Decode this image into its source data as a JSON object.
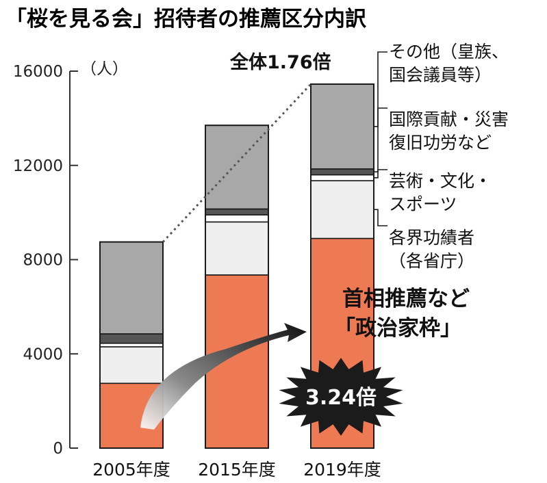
{
  "title": "「桜を見る会」招待者の推薦区分内訳",
  "colors": {
    "pm": "#ee7a54",
    "ministry": "#eeeeee",
    "arts": "#ffffff",
    "intl": "#555555",
    "other": "#a8a8a8",
    "text": "#1a1a1a"
  },
  "annotations": {
    "total_ratio": "全体1.76倍",
    "pm_label_line1": "首相推薦など",
    "pm_label_line2": "「政治家枠」",
    "pm_ratio": "3.24倍"
  },
  "chart_data": {
    "type": "bar",
    "stacked": true,
    "categories": [
      "2005年度",
      "2015年度",
      "2019年度"
    ],
    "ylabel": "（人）",
    "ylim": [
      0,
      16000
    ],
    "yticks": [
      0,
      4000,
      8000,
      12000,
      16000
    ],
    "grid": false,
    "legend_position": "right (labels beside 2019 bar)",
    "series": [
      {
        "name": "首相推薦など「政治家枠」",
        "legend": [
          "首相推薦など",
          "「政治家枠」"
        ],
        "colorKey": "pm",
        "values": [
          2750,
          7350,
          8900
        ]
      },
      {
        "name": "各界功績者（各省庁）",
        "legend": [
          "各界功績者",
          "（各省庁）"
        ],
        "colorKey": "ministry",
        "values": [
          1550,
          2250,
          2450
        ]
      },
      {
        "name": "芸術・文化・スポーツ",
        "legend": [
          "芸術・文化・",
          "スポーツ"
        ],
        "colorKey": "arts",
        "values": [
          150,
          300,
          250
        ]
      },
      {
        "name": "国際貢献・災害復旧功労など",
        "legend": [
          "国際貢献・災害",
          "復旧功労など"
        ],
        "colorKey": "intl",
        "values": [
          400,
          250,
          250
        ]
      },
      {
        "name": "その他（皇族、国会議員等）",
        "legend": [
          "その他（皇族、",
          "国会議員等）"
        ],
        "colorKey": "other",
        "values": [
          3900,
          3550,
          3600
        ]
      }
    ]
  }
}
